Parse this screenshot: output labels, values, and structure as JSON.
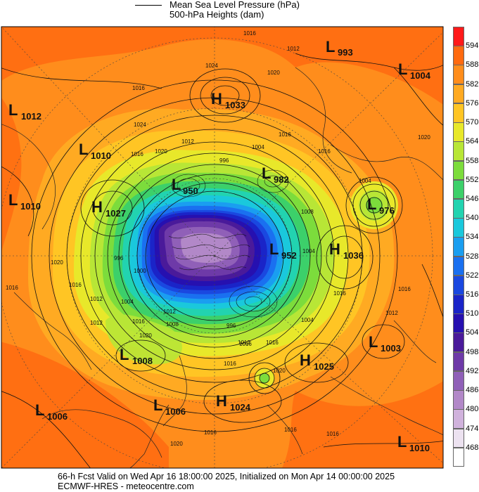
{
  "legend": {
    "pressure_label": "Mean Sea Level Pressure (hPa)",
    "height_label": "500-hPa Heights (dam)"
  },
  "footer": {
    "valid_line": "66-h Fcst Valid on Wed Apr 16 18:00:00 2025, Initialized on Mon Apr 14 00:00:00 2025",
    "source_line": "ECMWF-HRES  - meteocentre.com"
  },
  "colorbar": {
    "ticks": [
      "594",
      "588",
      "582",
      "576",
      "570",
      "564",
      "558",
      "552",
      "546",
      "540",
      "534",
      "528",
      "522",
      "516",
      "510",
      "504",
      "498",
      "492",
      "486",
      "480",
      "474",
      "468"
    ],
    "colors": [
      "#ff1a1a",
      "#ff6a10",
      "#ff8d1c",
      "#ffaa22",
      "#ffc524",
      "#e8e82a",
      "#b8e636",
      "#7cdc3c",
      "#3cd06a",
      "#22d3b0",
      "#1ac8dc",
      "#1a9ef0",
      "#1a70f0",
      "#1a48e0",
      "#1a24c8",
      "#2610b0",
      "#4a1a9a",
      "#6e3aa8",
      "#9060b8",
      "#b288c8",
      "#d0b2dc",
      "#ece2f0",
      "#ffffff"
    ],
    "icon": "vertical-color-scale"
  },
  "systems": [
    {
      "type": "L",
      "value": "993",
      "id": "l-993"
    },
    {
      "type": "L",
      "value": "1004",
      "id": "l-1004-ne"
    },
    {
      "type": "H",
      "value": "1033",
      "id": "h-1033"
    },
    {
      "type": "L",
      "value": "1012",
      "id": "l-1012"
    },
    {
      "type": "L",
      "value": "1010",
      "id": "l-1010-nw"
    },
    {
      "type": "L",
      "value": "1010",
      "id": "l-1010-w"
    },
    {
      "type": "H",
      "value": "1027",
      "id": "h-1027"
    },
    {
      "type": "L",
      "value": "950",
      "id": "l-950"
    },
    {
      "type": "L",
      "value": "982",
      "id": "l-982"
    },
    {
      "type": "L",
      "value": "976",
      "id": "l-976"
    },
    {
      "type": "L",
      "value": "952",
      "id": "l-952"
    },
    {
      "type": "H",
      "value": "1036",
      "id": "h-1036"
    },
    {
      "type": "L",
      "value": "1008",
      "id": "l-1008"
    },
    {
      "type": "L",
      "value": "1003",
      "id": "l-1003"
    },
    {
      "type": "H",
      "value": "1025",
      "id": "h-1025"
    },
    {
      "type": "H",
      "value": "1024",
      "id": "h-1024"
    },
    {
      "type": "L",
      "value": "1006",
      "id": "l-1006-sw"
    },
    {
      "type": "L",
      "value": "1006",
      "id": "l-1006-s"
    },
    {
      "type": "L",
      "value": "1010",
      "id": "l-1010-se"
    }
  ],
  "isobar_labels": [
    "1016",
    "1012",
    "1024",
    "1020",
    "1016",
    "1024",
    "1016",
    "1020",
    "1012",
    "1016",
    "1004",
    "996",
    "1008",
    "996",
    "1004",
    "1016",
    "1000",
    "1012",
    "1020",
    "1012",
    "1016",
    "1016",
    "1004",
    "1016",
    "1020",
    "1012",
    "1016",
    "996",
    "1016",
    "1004",
    "1016",
    "1012",
    "1020",
    "1004",
    "1016",
    "1008",
    "1016",
    "1016",
    "1020",
    "1016",
    "1012",
    "1020",
    "1016"
  ]
}
